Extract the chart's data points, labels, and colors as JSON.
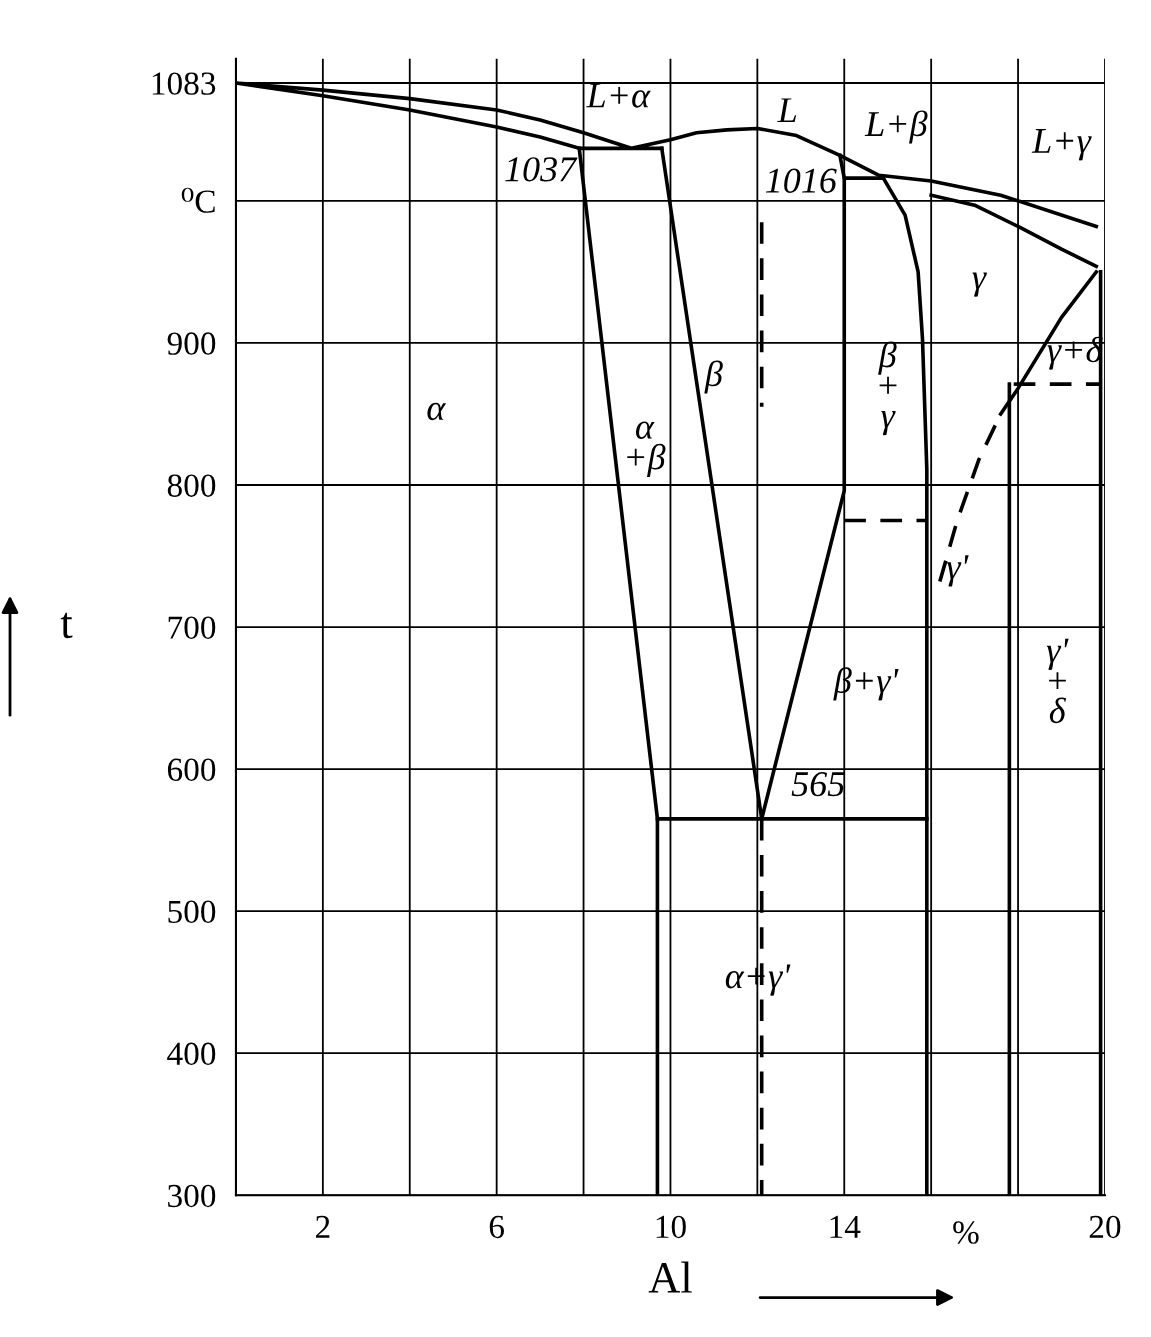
{
  "chart_data": {
    "type": "line",
    "xlabel": "Al",
    "ylabel": "t",
    "xlim": [
      0,
      20
    ],
    "ylim": [
      300,
      1100
    ],
    "xticks": [
      {
        "value": 0,
        "label": null
      },
      2,
      {
        "value": 4,
        "label": null
      },
      6,
      {
        "value": 8,
        "label": null
      },
      10,
      {
        "value": 12,
        "label": null
      },
      14,
      {
        "value": 16,
        "label": null
      },
      {
        "value": 18,
        "label": null
      },
      20
    ],
    "yticks": [
      300,
      400,
      500,
      600,
      700,
      800,
      900,
      {
        "value": 1000,
        "label": "⁰C"
      },
      1083
    ],
    "grid": true,
    "legend": false,
    "marker": "none",
    "series": [
      {
        "color": "#000000",
        "line_style": "solid",
        "x": [
          9.8,
          7.9,
          7,
          6,
          4,
          2,
          0,
          2,
          4,
          6,
          7,
          8,
          8.6,
          9.1,
          10,
          10.6,
          11.3,
          12,
          12.9,
          13.9,
          14.8,
          16,
          17.6,
          19.8
        ],
        "values": [
          1037,
          1037,
          1045,
          1052,
          1064,
          1074,
          1083,
          1078,
          1072,
          1064,
          1057,
          1048,
          1042,
          1037,
          1043,
          1048,
          1050,
          1051,
          1046,
          1032,
          1018,
          1014,
          1004,
          982
        ]
      },
      {
        "color": "#000000",
        "line_style": "solid",
        "x": [
          7.9,
          9.7,
          9.7
        ],
        "values": [
          1037,
          565,
          300
        ]
      },
      {
        "color": "#000000",
        "line_style": "solid",
        "x": [
          9.8,
          12.1,
          14.0,
          14.0
        ],
        "values": [
          1037,
          565,
          796,
          1016
        ]
      },
      {
        "color": "#000000",
        "line_style": "solid",
        "x": [
          9.7,
          15.9
        ],
        "values": [
          565,
          565
        ]
      },
      {
        "color": "#000000",
        "line_style": "solid",
        "x": [
          13.9,
          14.0,
          14.9
        ],
        "values": [
          1032,
          1016,
          1016
        ]
      },
      {
        "color": "#000000",
        "line_style": "solid",
        "x": [
          14.9,
          15.4,
          15.7,
          15.8,
          15.9,
          15.9
        ],
        "values": [
          1016,
          990,
          950,
          903,
          811,
          300
        ]
      },
      {
        "color": "#000000",
        "line_style": "dashed",
        "x": [
          14.0,
          15.9
        ],
        "values": [
          775,
          775
        ]
      },
      {
        "color": "#000000",
        "line_style": "solid",
        "x": [
          16,
          17,
          18,
          19,
          19.8
        ],
        "values": [
          1004,
          997,
          982,
          966,
          954
        ]
      },
      {
        "color": "#000000",
        "line_style": "dashed",
        "x": [
          16.2,
          16.6,
          17.1,
          17.6
        ],
        "values": [
          732,
          775,
          818,
          850
        ]
      },
      {
        "color": "#000000",
        "line_style": "solid",
        "x": [
          17.6,
          18,
          19,
          19.8
        ],
        "values": [
          850,
          868,
          918,
          950
        ]
      },
      {
        "color": "#000000",
        "line_style": "dashed",
        "x": [
          17.9,
          19.9
        ],
        "values": [
          871,
          871
        ]
      },
      {
        "color": "#000000",
        "line_style": "solid",
        "x": [
          17.8,
          17.8
        ],
        "values": [
          871,
          300
        ]
      },
      {
        "color": "#000000",
        "line_style": "solid",
        "x": [
          19.9,
          19.9
        ],
        "values": [
          950,
          300
        ]
      },
      {
        "color": "#000000",
        "line_style": "dashed",
        "x": [
          12.1,
          12.1
        ],
        "values": [
          565,
          300
        ]
      },
      {
        "color": "#000000",
        "line_style": "dashed",
        "x": [
          12.1,
          12.1
        ],
        "values": [
          985,
          855
        ]
      }
    ],
    "annotations": [
      "L+α",
      "L",
      "1037",
      "1016",
      "L+β",
      "L+γ",
      "γ",
      "β",
      "α",
      "α\n+β",
      "β\n+\nγ",
      "γ+δ",
      "γ'",
      "γ'\n+\nδ",
      "β+γ'",
      "565",
      "α+γ'",
      "%"
    ]
  }
}
